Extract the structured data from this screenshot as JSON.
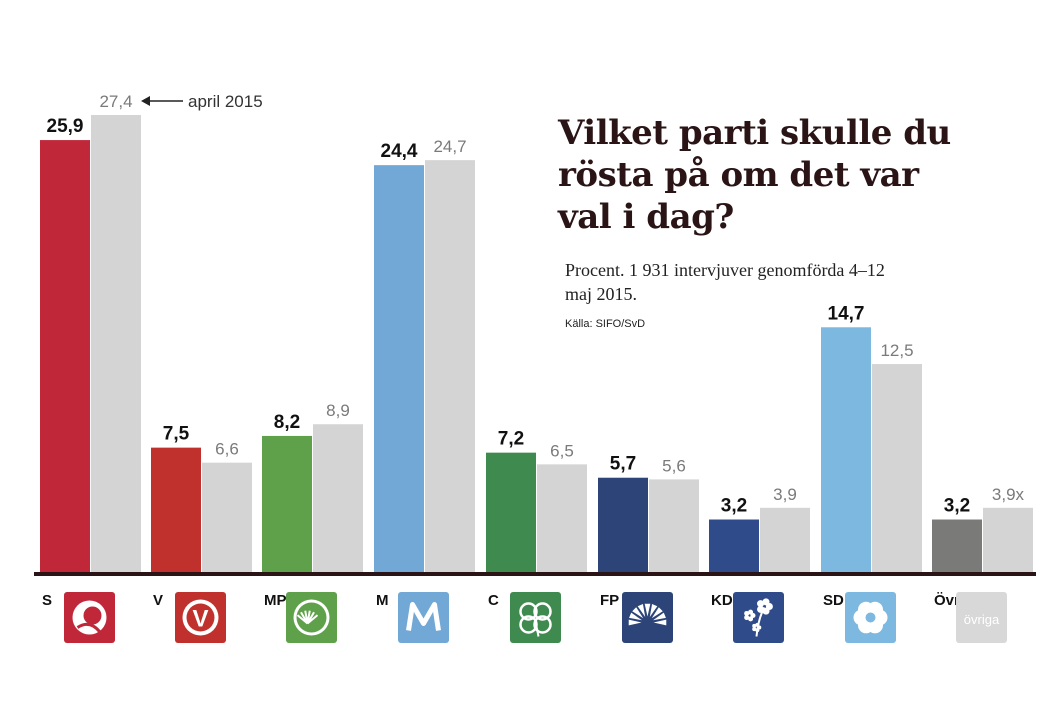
{
  "chart_data": {
    "type": "bar",
    "title": "Vilket parti skulle du rösta på om det var val i dag?",
    "subtitle": "Procent. 1 931 intervjuver genomförda 4–12 maj 2015.",
    "source": "Källa: SIFO/SvD",
    "annotation": "april 2015",
    "categories": [
      "S",
      "V",
      "MP",
      "M",
      "C",
      "FP",
      "KD",
      "SD",
      "Övr"
    ],
    "series": [
      {
        "name": "maj 2015",
        "values": [
          25.9,
          7.5,
          8.2,
          24.4,
          7.2,
          5.7,
          3.2,
          14.7,
          3.2
        ],
        "labels": [
          "25,9",
          "7,5",
          "8,2",
          "24,4",
          "7,2",
          "5,7",
          "3,2",
          "14,7",
          "3,2"
        ]
      },
      {
        "name": "april 2015",
        "values": [
          27.4,
          6.6,
          8.9,
          24.7,
          6.5,
          5.6,
          3.9,
          12.5,
          3.9
        ],
        "labels": [
          "27,4",
          "6,6",
          "8,9",
          "24,7",
          "6,5",
          "5,6",
          "3,9",
          "12,5",
          "3,9x"
        ]
      }
    ],
    "ylim": [
      0,
      27.4
    ],
    "xlabel": "",
    "ylabel": ""
  },
  "colors": {
    "S": "#c0283a",
    "V": "#c0312d",
    "MP": "#5fa04b",
    "M": "#72a8d6",
    "C": "#3f8a4e",
    "FP": "#2c4478",
    "KD": "#2f4b8a",
    "SD": "#7cb8e0",
    "Övr": "#7a7a78",
    "previous": "#d4d4d4",
    "axis": "#2a1416"
  },
  "icons": [
    "s-rose-icon",
    "v-logo-icon",
    "mp-dandelion-icon",
    "m-logo-icon",
    "c-clover-icon",
    "fp-cornflower-icon",
    "kd-anemone-icon",
    "sd-blossom-icon",
    "ovriga-icon"
  ],
  "ovriga_label": "övriga"
}
